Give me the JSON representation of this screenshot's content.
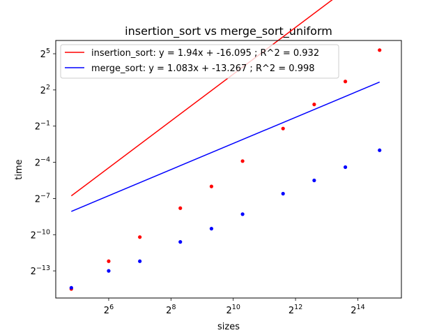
{
  "chart_data": {
    "type": "scatter",
    "title": "insertion_sort vs merge_sort_uniform",
    "xlabel": "sizes",
    "ylabel": "time",
    "xscale": "log2",
    "yscale": "log2",
    "xlim_log2": [
      4.3,
      15.4
    ],
    "ylim_log2": [
      -15.25,
      6.1
    ],
    "xticks": [
      {
        "base": "2",
        "exp": "6",
        "log2": 6
      },
      {
        "base": "2",
        "exp": "8",
        "log2": 8
      },
      {
        "base": "2",
        "exp": "10",
        "log2": 10
      },
      {
        "base": "2",
        "exp": "12",
        "log2": 12
      },
      {
        "base": "2",
        "exp": "14",
        "log2": 14
      }
    ],
    "yticks": [
      {
        "base": "2",
        "exp": "5",
        "log2": 5
      },
      {
        "base": "2",
        "exp": "2",
        "log2": 2
      },
      {
        "base": "2",
        "exp": "−1",
        "log2": -1
      },
      {
        "base": "2",
        "exp": "−4",
        "log2": -4
      },
      {
        "base": "2",
        "exp": "−7",
        "log2": -7
      },
      {
        "base": "2",
        "exp": "−10",
        "log2": -10
      },
      {
        "base": "2",
        "exp": "−13",
        "log2": -13
      }
    ],
    "grid": false,
    "legend_position": "top-left",
    "series": [
      {
        "name": "insertion_sort: y = 1.94x + -16.095 ; R^2 = 0.932",
        "color": "#ff0000",
        "fit": {
          "slope": 1.94,
          "intercept": -16.095
        },
        "points_log2": [
          [
            4.8,
            -14.5
          ],
          [
            6.0,
            -12.2
          ],
          [
            7.0,
            -10.2
          ],
          [
            8.3,
            -7.8
          ],
          [
            9.3,
            -6.0
          ],
          [
            10.3,
            -3.9
          ],
          [
            11.6,
            -1.2
          ],
          [
            12.6,
            0.8
          ],
          [
            13.6,
            2.7
          ],
          [
            14.7,
            5.3
          ]
        ]
      },
      {
        "name": "merge_sort: y = 1.083x + -13.267 ; R^2 = 0.998",
        "color": "#0000ff",
        "fit": {
          "slope": 1.083,
          "intercept": -13.267
        },
        "points_log2": [
          [
            4.8,
            -14.4
          ],
          [
            6.0,
            -13.0
          ],
          [
            7.0,
            -12.2
          ],
          [
            8.3,
            -10.6
          ],
          [
            9.3,
            -9.5
          ],
          [
            10.3,
            -8.3
          ],
          [
            11.6,
            -6.6
          ],
          [
            12.6,
            -5.5
          ],
          [
            13.6,
            -4.4
          ],
          [
            14.7,
            -3.0
          ]
        ]
      }
    ]
  }
}
